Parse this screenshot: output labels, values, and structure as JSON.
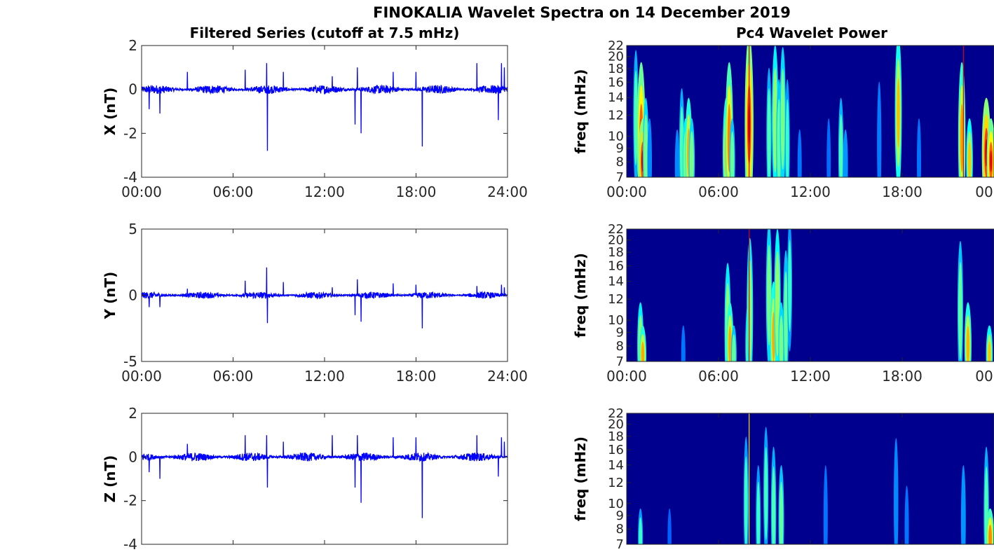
{
  "figure": {
    "title": "FINOKALIA Wavelet Spectra on 14 December 2019",
    "left_column_title": "Filtered Series (cutoff at 7.5 mHz)",
    "right_column_title": "Pc4 Wavelet Power"
  },
  "colors": {
    "series_line": "#0000ff",
    "spectrogram_background": "#00008f",
    "axis": "#262626"
  },
  "chart_data": [
    {
      "type": "line",
      "title": "Filtered Series (cutoff at 7.5 mHz)",
      "ylabel": "X (nT)",
      "xlabel": "",
      "xlim": [
        0,
        24
      ],
      "x_tick_labels": [
        "00:00",
        "06:00",
        "12:00",
        "18:00",
        "24:00"
      ],
      "ylim": [
        -4,
        2
      ],
      "y_ticks": [
        -4,
        -2,
        0,
        2
      ],
      "y_tick_labels": [
        "-4",
        "-2",
        "0",
        "2"
      ],
      "noise_amplitude_nT": 0.2,
      "spikes": [
        {
          "x": 0.5,
          "y": -0.9
        },
        {
          "x": 1.2,
          "y": -1.1
        },
        {
          "x": 3.0,
          "y": 0.8
        },
        {
          "x": 6.8,
          "y": 0.9
        },
        {
          "x": 8.2,
          "y": 1.2
        },
        {
          "x": 8.25,
          "y": -2.8
        },
        {
          "x": 9.3,
          "y": 0.8
        },
        {
          "x": 12.5,
          "y": 0.6
        },
        {
          "x": 14.0,
          "y": -1.6
        },
        {
          "x": 14.15,
          "y": 1.0
        },
        {
          "x": 14.4,
          "y": -2.0
        },
        {
          "x": 16.5,
          "y": 0.8
        },
        {
          "x": 18.0,
          "y": 0.8
        },
        {
          "x": 18.4,
          "y": -2.6
        },
        {
          "x": 22.0,
          "y": 1.2
        },
        {
          "x": 23.4,
          "y": -1.4
        },
        {
          "x": 23.6,
          "y": 1.2
        },
        {
          "x": 23.8,
          "y": 1.0
        }
      ]
    },
    {
      "type": "line",
      "ylabel": "Y (nT)",
      "xlabel": "",
      "xlim": [
        0,
        24
      ],
      "x_tick_labels": [
        "00:00",
        "06:00",
        "12:00",
        "18:00",
        "24:00"
      ],
      "ylim": [
        -5,
        5
      ],
      "y_ticks": [
        -5,
        0,
        5
      ],
      "y_tick_labels": [
        "-5",
        "0",
        "5"
      ],
      "noise_amplitude_nT": 0.25,
      "spikes": [
        {
          "x": 0.5,
          "y": -0.9
        },
        {
          "x": 1.2,
          "y": -0.9
        },
        {
          "x": 3.0,
          "y": 0.5
        },
        {
          "x": 6.8,
          "y": 1.1
        },
        {
          "x": 8.2,
          "y": 2.1
        },
        {
          "x": 8.25,
          "y": -2.1
        },
        {
          "x": 9.3,
          "y": 1.0
        },
        {
          "x": 12.5,
          "y": 0.6
        },
        {
          "x": 14.0,
          "y": -1.5
        },
        {
          "x": 14.15,
          "y": 1.2
        },
        {
          "x": 14.4,
          "y": -2.0
        },
        {
          "x": 16.5,
          "y": 0.9
        },
        {
          "x": 18.0,
          "y": 0.8
        },
        {
          "x": 18.4,
          "y": -2.5
        },
        {
          "x": 22.0,
          "y": 0.7
        },
        {
          "x": 23.6,
          "y": 0.8
        },
        {
          "x": 23.8,
          "y": 0.6
        }
      ]
    },
    {
      "type": "line",
      "ylabel": "Z (nT)",
      "xlabel": "",
      "xlim": [
        0,
        24
      ],
      "x_tick_labels": [],
      "ylim": [
        -4,
        2
      ],
      "y_ticks": [
        -4,
        -2,
        0,
        2
      ],
      "y_tick_labels": [
        "-4",
        "-2",
        "0",
        "2"
      ],
      "noise_amplitude_nT": 0.2,
      "spikes": [
        {
          "x": 0.5,
          "y": -0.7
        },
        {
          "x": 1.2,
          "y": -1.0
        },
        {
          "x": 3.0,
          "y": 0.6
        },
        {
          "x": 6.8,
          "y": 1.0
        },
        {
          "x": 8.2,
          "y": 1.0
        },
        {
          "x": 8.25,
          "y": -1.4
        },
        {
          "x": 9.3,
          "y": 0.7
        },
        {
          "x": 12.5,
          "y": 1.0
        },
        {
          "x": 14.0,
          "y": -1.4
        },
        {
          "x": 14.15,
          "y": 1.0
        },
        {
          "x": 14.4,
          "y": -2.1
        },
        {
          "x": 16.5,
          "y": 0.9
        },
        {
          "x": 18.0,
          "y": 0.9
        },
        {
          "x": 18.4,
          "y": -2.8
        },
        {
          "x": 22.0,
          "y": 1.0
        },
        {
          "x": 23.4,
          "y": -0.9
        },
        {
          "x": 23.6,
          "y": 0.9
        },
        {
          "x": 23.8,
          "y": 0.7
        }
      ]
    },
    {
      "type": "heatmap",
      "title": "Pc4 Wavelet Power",
      "ylabel": "freq (mHz)",
      "xlim": [
        0,
        24
      ],
      "x_tick_labels": [
        "00:00",
        "06:00",
        "12:00",
        "18:00",
        "00"
      ],
      "ylim": [
        7,
        22
      ],
      "y_scale": "log",
      "y_ticks": [
        7,
        8,
        9,
        10,
        12,
        14,
        16,
        18,
        20,
        22
      ],
      "colormap": "jet",
      "bursts": [
        {
          "t": 0.6,
          "f": 14,
          "p": 0.45
        },
        {
          "t": 0.95,
          "f": 12,
          "p": 0.9
        },
        {
          "t": 1.05,
          "f": 9,
          "p": 0.97
        },
        {
          "t": 1.25,
          "f": 10,
          "p": 0.55
        },
        {
          "t": 1.5,
          "f": 9,
          "p": 0.35
        },
        {
          "t": 3.3,
          "f": 8.5,
          "p": 0.35
        },
        {
          "t": 3.6,
          "f": 10.5,
          "p": 0.45
        },
        {
          "t": 3.85,
          "f": 9,
          "p": 0.6
        },
        {
          "t": 4.05,
          "f": 10,
          "p": 0.72
        },
        {
          "t": 4.25,
          "f": 9,
          "p": 0.55
        },
        {
          "t": 6.5,
          "f": 10,
          "p": 0.68
        },
        {
          "t": 6.7,
          "f": 12,
          "p": 0.82
        },
        {
          "t": 6.9,
          "f": 9,
          "p": 0.5
        },
        {
          "t": 7.9,
          "f": 11,
          "p": 0.5
        },
        {
          "t": 8.0,
          "f": 14,
          "p": 0.95
        },
        {
          "t": 9.3,
          "f": 12,
          "p": 0.45
        },
        {
          "t": 9.7,
          "f": 14,
          "p": 0.62
        },
        {
          "t": 9.95,
          "f": 11,
          "p": 0.5
        },
        {
          "t": 10.2,
          "f": 14,
          "p": 0.55
        },
        {
          "t": 10.5,
          "f": 11,
          "p": 0.4
        },
        {
          "t": 11.3,
          "f": 8.5,
          "p": 0.3
        },
        {
          "t": 13.2,
          "f": 9,
          "p": 0.28
        },
        {
          "t": 14.0,
          "f": 10,
          "p": 0.45
        },
        {
          "t": 14.3,
          "f": 8.5,
          "p": 0.38
        },
        {
          "t": 16.5,
          "f": 11,
          "p": 0.32
        },
        {
          "t": 17.75,
          "f": 15,
          "p": 0.68
        },
        {
          "t": 19.1,
          "f": 9,
          "p": 0.3
        },
        {
          "t": 21.9,
          "f": 12,
          "p": 0.75
        },
        {
          "t": 22.4,
          "f": 9,
          "p": 0.65
        },
        {
          "t": 23.5,
          "f": 10,
          "p": 0.98
        },
        {
          "t": 23.8,
          "f": 9,
          "p": 0.9
        }
      ],
      "lines": [
        {
          "t": 8.0,
          "p": 0.95
        },
        {
          "t": 22.0,
          "p": 0.9
        }
      ]
    },
    {
      "type": "heatmap",
      "ylabel": "freq (mHz)",
      "xlim": [
        0,
        24
      ],
      "x_tick_labels": [
        "00:00",
        "06:00",
        "12:00",
        "18:00",
        "00"
      ],
      "ylim": [
        7,
        22
      ],
      "y_scale": "log",
      "y_ticks": [
        7,
        8,
        9,
        10,
        12,
        14,
        16,
        18,
        20,
        22
      ],
      "colormap": "jet",
      "bursts": [
        {
          "t": 0.9,
          "f": 9,
          "p": 0.6
        },
        {
          "t": 1.05,
          "f": 8,
          "p": 0.72
        },
        {
          "t": 3.7,
          "f": 8,
          "p": 0.3
        },
        {
          "t": 6.6,
          "f": 11,
          "p": 0.6
        },
        {
          "t": 6.75,
          "f": 9,
          "p": 0.72
        },
        {
          "t": 7.0,
          "f": 8,
          "p": 0.5
        },
        {
          "t": 7.95,
          "f": 9,
          "p": 0.55
        },
        {
          "t": 8.05,
          "f": 13,
          "p": 0.6
        },
        {
          "t": 9.3,
          "f": 15,
          "p": 0.55
        },
        {
          "t": 9.6,
          "f": 10,
          "p": 0.72
        },
        {
          "t": 9.85,
          "f": 14,
          "p": 0.62
        },
        {
          "t": 10.1,
          "f": 9,
          "p": 0.55
        },
        {
          "t": 10.4,
          "f": 12,
          "p": 0.5
        },
        {
          "t": 10.65,
          "f": 16,
          "p": 0.4
        },
        {
          "t": 21.8,
          "f": 13,
          "p": 0.5
        },
        {
          "t": 22.3,
          "f": 9,
          "p": 0.7
        },
        {
          "t": 23.7,
          "f": 8,
          "p": 0.65
        }
      ],
      "lines": [
        {
          "t": 8.0,
          "p": 0.92
        }
      ]
    },
    {
      "type": "heatmap",
      "ylabel": "freq (mHz)",
      "xlim": [
        0,
        24
      ],
      "x_tick_labels": [],
      "ylim": [
        7,
        22
      ],
      "y_scale": "log",
      "y_ticks": [
        7,
        8,
        9,
        10,
        12,
        14,
        16,
        18,
        20,
        22
      ],
      "colormap": "jet",
      "bursts": [
        {
          "t": 0.9,
          "f": 8,
          "p": 0.4
        },
        {
          "t": 2.8,
          "f": 8,
          "p": 0.25
        },
        {
          "t": 7.8,
          "f": 12,
          "p": 0.4
        },
        {
          "t": 8.6,
          "f": 10,
          "p": 0.4
        },
        {
          "t": 9.1,
          "f": 13,
          "p": 0.42
        },
        {
          "t": 9.6,
          "f": 11,
          "p": 0.45
        },
        {
          "t": 10.1,
          "f": 10,
          "p": 0.5
        },
        {
          "t": 13.0,
          "f": 10,
          "p": 0.3
        },
        {
          "t": 17.6,
          "f": 12,
          "p": 0.35
        },
        {
          "t": 18.3,
          "f": 9,
          "p": 0.3
        },
        {
          "t": 22.0,
          "f": 10,
          "p": 0.38
        },
        {
          "t": 23.5,
          "f": 11,
          "p": 0.45
        },
        {
          "t": 23.75,
          "f": 8,
          "p": 0.8
        }
      ],
      "lines": [
        {
          "t": 8.0,
          "p": 0.65
        }
      ]
    }
  ]
}
